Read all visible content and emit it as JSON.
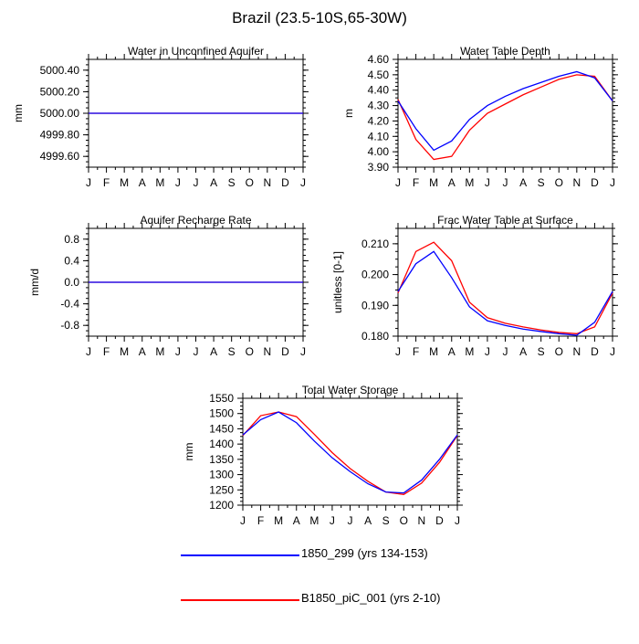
{
  "title": "Brazil (23.5-10S,65-30W)",
  "months": [
    "J",
    "F",
    "M",
    "A",
    "M",
    "J",
    "J",
    "A",
    "S",
    "O",
    "N",
    "D",
    "J"
  ],
  "colors": {
    "series1": "#0000ff",
    "series2": "#ff0000"
  },
  "legend": [
    {
      "label": "1850_299 (yrs 134-153)",
      "color": "#0000ff"
    },
    {
      "label": "B1850_piC_001 (yrs 2-10)",
      "color": "#ff0000"
    }
  ],
  "chart_data": [
    {
      "type": "line",
      "title": "Water in Unconfined Aquifer",
      "ylabel": "mm",
      "ylim": [
        4999.5,
        5000.5
      ],
      "yticks": [
        4999.6,
        4999.8,
        5000.0,
        5000.2,
        5000.4
      ],
      "ytick_labels": [
        "4999.60",
        "4999.80",
        "5000.00",
        "5000.20",
        "5000.40"
      ],
      "categories": [
        "J",
        "F",
        "M",
        "A",
        "M",
        "J",
        "J",
        "A",
        "S",
        "O",
        "N",
        "D",
        "J"
      ],
      "series": [
        {
          "name": "1850_299 (yrs 134-153)",
          "values": [
            5000,
            5000,
            5000,
            5000,
            5000,
            5000,
            5000,
            5000,
            5000,
            5000,
            5000,
            5000,
            5000
          ]
        },
        {
          "name": "B1850_piC_001 (yrs 2-10)",
          "values": [
            5000,
            5000,
            5000,
            5000,
            5000,
            5000,
            5000,
            5000,
            5000,
            5000,
            5000,
            5000,
            5000
          ]
        }
      ]
    },
    {
      "type": "line",
      "title": "Water Table Depth",
      "ylabel": "m",
      "ylim": [
        3.9,
        4.6
      ],
      "yticks": [
        3.9,
        4.0,
        4.1,
        4.2,
        4.3,
        4.4,
        4.5,
        4.6
      ],
      "ytick_labels": [
        "3.90",
        "4.00",
        "4.10",
        "4.20",
        "4.30",
        "4.40",
        "4.50",
        "4.60"
      ],
      "categories": [
        "J",
        "F",
        "M",
        "A",
        "M",
        "J",
        "J",
        "A",
        "S",
        "O",
        "N",
        "D",
        "J"
      ],
      "series": [
        {
          "name": "1850_299 (yrs 134-153)",
          "values": [
            4.33,
            4.15,
            4.01,
            4.07,
            4.21,
            4.3,
            4.36,
            4.41,
            4.45,
            4.49,
            4.52,
            4.48,
            4.33
          ]
        },
        {
          "name": "B1850_piC_001 (yrs 2-10)",
          "values": [
            4.34,
            4.08,
            3.95,
            3.97,
            4.14,
            4.25,
            4.31,
            4.37,
            4.42,
            4.47,
            4.5,
            4.49,
            4.33
          ]
        }
      ]
    },
    {
      "type": "line",
      "title": "Aquifer Recharge Rate",
      "ylabel": "mm/d",
      "ylim": [
        -1.0,
        1.0
      ],
      "yticks": [
        -0.8,
        -0.4,
        0.0,
        0.4,
        0.8
      ],
      "ytick_labels": [
        "-0.8",
        "-0.4",
        "0.0",
        "0.4",
        "0.8"
      ],
      "categories": [
        "J",
        "F",
        "M",
        "A",
        "M",
        "J",
        "J",
        "A",
        "S",
        "O",
        "N",
        "D",
        "J"
      ],
      "series": [
        {
          "name": "1850_299 (yrs 134-153)",
          "values": [
            0,
            0,
            0,
            0,
            0,
            0,
            0,
            0,
            0,
            0,
            0,
            0,
            0
          ]
        },
        {
          "name": "B1850_piC_001 (yrs 2-10)",
          "values": [
            0,
            0,
            0,
            0,
            0,
            0,
            0,
            0,
            0,
            0,
            0,
            0,
            0
          ]
        }
      ]
    },
    {
      "type": "line",
      "title": "Frac Water Table at Surface",
      "ylabel": "unitless [0-1]",
      "ylim": [
        0.18,
        0.215
      ],
      "yticks": [
        0.18,
        0.19,
        0.2,
        0.21
      ],
      "ytick_labels": [
        "0.180",
        "0.190",
        "0.200",
        "0.210"
      ],
      "categories": [
        "J",
        "F",
        "M",
        "A",
        "M",
        "J",
        "J",
        "A",
        "S",
        "O",
        "N",
        "D",
        "J"
      ],
      "series": [
        {
          "name": "1850_299 (yrs 134-153)",
          "values": [
            0.1945,
            0.2035,
            0.2075,
            0.199,
            0.1895,
            0.185,
            0.1835,
            0.1823,
            0.1815,
            0.1808,
            0.1803,
            0.1845,
            0.1945
          ]
        },
        {
          "name": "B1850_piC_001 (yrs 2-10)",
          "values": [
            0.194,
            0.2075,
            0.2105,
            0.2045,
            0.191,
            0.186,
            0.1842,
            0.183,
            0.182,
            0.1812,
            0.1808,
            0.183,
            0.194
          ]
        }
      ]
    },
    {
      "type": "line",
      "title": "Total Water Storage",
      "ylabel": "mm",
      "ylim": [
        1200,
        1550
      ],
      "yticks": [
        1200,
        1250,
        1300,
        1350,
        1400,
        1450,
        1500,
        1550
      ],
      "ytick_labels": [
        "1200",
        "1250",
        "1300",
        "1350",
        "1400",
        "1450",
        "1500",
        "1550"
      ],
      "categories": [
        "J",
        "F",
        "M",
        "A",
        "M",
        "J",
        "J",
        "A",
        "S",
        "O",
        "N",
        "D",
        "J"
      ],
      "series": [
        {
          "name": "1850_299 (yrs 134-153)",
          "values": [
            1430,
            1480,
            1505,
            1470,
            1410,
            1355,
            1310,
            1270,
            1243,
            1240,
            1282,
            1350,
            1430
          ]
        },
        {
          "name": "B1850_piC_001 (yrs 2-10)",
          "values": [
            1428,
            1493,
            1505,
            1490,
            1432,
            1372,
            1320,
            1278,
            1243,
            1235,
            1272,
            1340,
            1428
          ]
        }
      ]
    }
  ]
}
